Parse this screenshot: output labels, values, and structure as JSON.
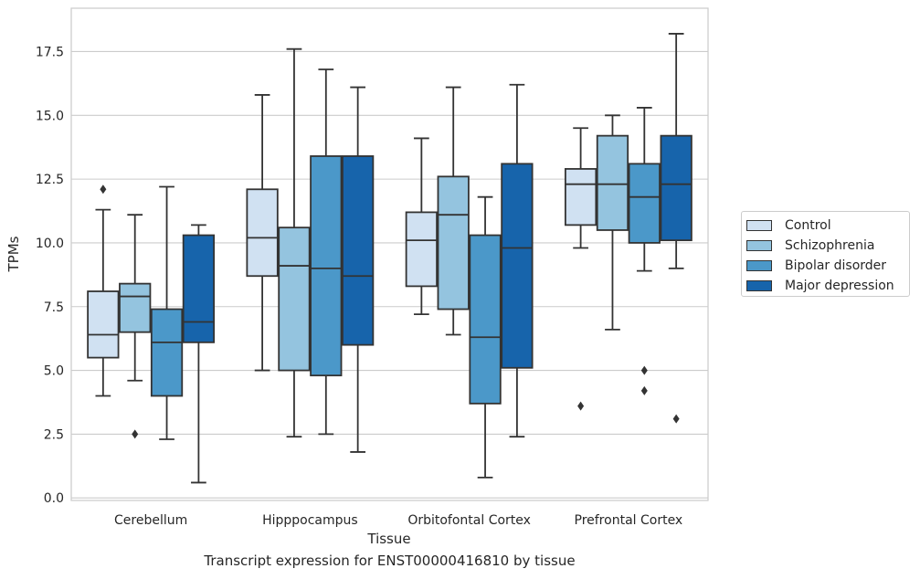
{
  "caption": "Transcript expression for ENST00000416810 by tissue",
  "chart_data": {
    "type": "box",
    "xlabel": "Tissue",
    "ylabel": "TPMs",
    "ylim": [
      -0.1,
      19.2
    ],
    "yticks": [
      "0.0",
      "2.5",
      "5.0",
      "7.5",
      "10.0",
      "12.5",
      "15.0",
      "17.5"
    ],
    "grid": "horizontal",
    "legend_position": "right",
    "categories": [
      "Cerebellum",
      "Hipppocampus",
      "Orbitofontal Cortex",
      "Prefrontal Cortex"
    ],
    "series": [
      {
        "name": "Control",
        "color": "#d0e1f2",
        "boxes": [
          {
            "whislo": 4.0,
            "q1": 5.5,
            "med": 6.4,
            "q3": 8.1,
            "whishi": 11.3,
            "fliers": [
              12.1
            ]
          },
          {
            "whislo": 5.0,
            "q1": 8.7,
            "med": 10.2,
            "q3": 12.1,
            "whishi": 15.8,
            "fliers": []
          },
          {
            "whislo": 7.2,
            "q1": 8.3,
            "med": 10.1,
            "q3": 11.2,
            "whishi": 14.1,
            "fliers": []
          },
          {
            "whislo": 9.8,
            "q1": 10.7,
            "med": 12.3,
            "q3": 12.9,
            "whishi": 14.5,
            "fliers": [
              3.6
            ]
          }
        ]
      },
      {
        "name": "Schizophrenia",
        "color": "#94c4df",
        "boxes": [
          {
            "whislo": 4.6,
            "q1": 6.5,
            "med": 7.9,
            "q3": 8.4,
            "whishi": 11.1,
            "fliers": [
              2.5
            ]
          },
          {
            "whislo": 2.4,
            "q1": 5.0,
            "med": 9.1,
            "q3": 10.6,
            "whishi": 17.6,
            "fliers": []
          },
          {
            "whislo": 6.4,
            "q1": 7.4,
            "med": 11.1,
            "q3": 12.6,
            "whishi": 16.1,
            "fliers": []
          },
          {
            "whislo": 6.6,
            "q1": 10.5,
            "med": 12.3,
            "q3": 14.2,
            "whishi": 15.0,
            "fliers": []
          }
        ]
      },
      {
        "name": "Bipolar disorder",
        "color": "#4b98c9",
        "boxes": [
          {
            "whislo": 2.3,
            "q1": 4.0,
            "med": 6.1,
            "q3": 7.4,
            "whishi": 12.2,
            "fliers": []
          },
          {
            "whislo": 2.5,
            "q1": 4.8,
            "med": 9.0,
            "q3": 13.4,
            "whishi": 16.8,
            "fliers": []
          },
          {
            "whislo": 0.8,
            "q1": 3.7,
            "med": 6.3,
            "q3": 10.3,
            "whishi": 11.8,
            "fliers": []
          },
          {
            "whislo": 8.9,
            "q1": 10.0,
            "med": 11.8,
            "q3": 13.1,
            "whishi": 15.3,
            "fliers": [
              5.0,
              4.2
            ]
          }
        ]
      },
      {
        "name": "Major depression",
        "color": "#1764ab",
        "boxes": [
          {
            "whislo": 0.6,
            "q1": 6.1,
            "med": 6.9,
            "q3": 10.3,
            "whishi": 10.7,
            "fliers": []
          },
          {
            "whislo": 1.8,
            "q1": 6.0,
            "med": 8.7,
            "q3": 13.4,
            "whishi": 16.1,
            "fliers": []
          },
          {
            "whislo": 2.4,
            "q1": 5.1,
            "med": 9.8,
            "q3": 13.1,
            "whishi": 16.2,
            "fliers": []
          },
          {
            "whislo": 9.0,
            "q1": 10.1,
            "med": 12.3,
            "q3": 14.2,
            "whishi": 18.2,
            "fliers": [
              3.1
            ]
          }
        ]
      }
    ]
  }
}
